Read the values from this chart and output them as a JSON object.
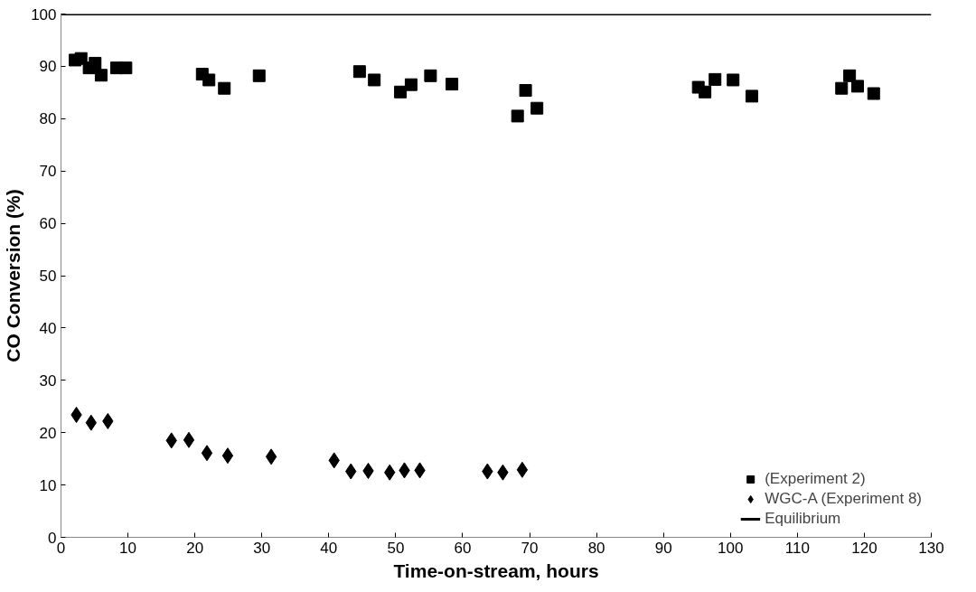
{
  "chart_data": {
    "type": "scatter",
    "xlabel": "Time-on-stream, hours",
    "ylabel": "CO Conversion (%)",
    "xlim": [
      0,
      130
    ],
    "ylim": [
      0,
      100
    ],
    "xticks": [
      0,
      10,
      20,
      30,
      40,
      50,
      60,
      70,
      80,
      90,
      100,
      110,
      120,
      130
    ],
    "yticks": [
      0,
      10,
      20,
      30,
      40,
      50,
      60,
      70,
      80,
      90,
      100
    ],
    "grid": false,
    "legend": "bottom right",
    "series": [
      {
        "name": "(Experiment 2)",
        "marker": "square",
        "color": "#000000",
        "x": [
          2.1,
          3.0,
          4.2,
          5.1,
          6.0,
          8.3,
          9.7,
          21.1,
          22.1,
          24.4,
          29.6,
          44.6,
          46.8,
          50.7,
          52.3,
          55.2,
          58.4,
          68.2,
          69.4,
          71.1,
          95.2,
          96.2,
          97.7,
          100.4,
          103.2,
          116.6,
          117.8,
          119.0,
          121.4
        ],
        "values": [
          91.2,
          91.5,
          89.7,
          90.6,
          88.3,
          89.7,
          89.7,
          88.5,
          87.4,
          85.8,
          88.2,
          89.0,
          87.4,
          85.1,
          86.5,
          88.2,
          86.6,
          80.5,
          85.4,
          82.0,
          86.0,
          85.1,
          87.5,
          87.4,
          84.3,
          85.8,
          88.2,
          86.2,
          84.8
        ]
      },
      {
        "name": "WGC-A (Experiment 8)",
        "marker": "diamond",
        "color": "#000000",
        "x": [
          2.3,
          4.5,
          7.0,
          16.5,
          19.1,
          21.8,
          24.9,
          31.4,
          40.8,
          43.3,
          45.9,
          49.1,
          51.3,
          53.6,
          63.7,
          66.0,
          68.9
        ],
        "values": [
          23.4,
          21.9,
          22.2,
          18.5,
          18.6,
          16.1,
          15.6,
          15.4,
          14.7,
          12.6,
          12.7,
          12.4,
          12.8,
          12.8,
          12.6,
          12.4,
          12.9
        ]
      },
      {
        "name": "Equilibrium",
        "type": "line",
        "line_style": "solid",
        "color": "#000000",
        "x": [
          0,
          130
        ],
        "values": [
          100,
          100
        ]
      }
    ]
  }
}
